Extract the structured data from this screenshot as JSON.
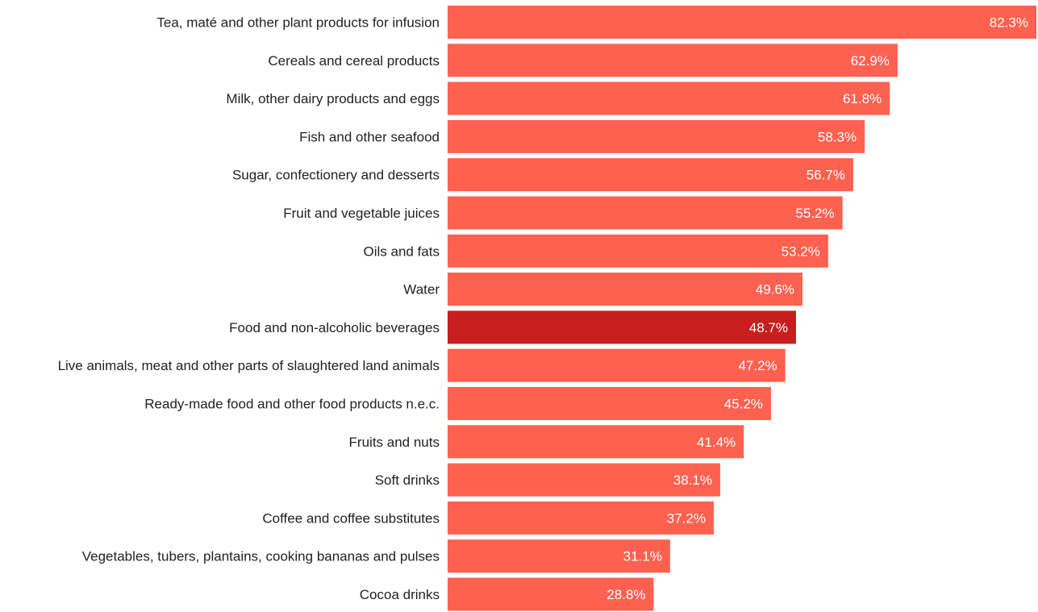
{
  "chart_data": {
    "type": "bar",
    "orientation": "horizontal",
    "categories": [
      "Tea, maté and other plant products for infusion",
      "Cereals and cereal products",
      "Milk, other dairy products and eggs",
      "Fish and other seafood",
      "Sugar, confectionery and desserts",
      "Fruit and vegetable juices",
      "Oils and fats",
      "Water",
      "Food and non-alcoholic beverages",
      "Live animals, meat and other parts of slaughtered land animals",
      "Ready-made food and other food products n.e.c.",
      "Fruits and nuts",
      "Soft drinks",
      "Coffee and coffee substitutes",
      "Vegetables, tubers, plantains, cooking bananas and pulses",
      "Cocoa drinks"
    ],
    "values": [
      82.3,
      62.9,
      61.8,
      58.3,
      56.7,
      55.2,
      53.2,
      49.6,
      48.7,
      47.2,
      45.2,
      41.4,
      38.1,
      37.2,
      31.1,
      28.8
    ],
    "value_labels": [
      "82.3%",
      "62.9%",
      "61.8%",
      "58.3%",
      "56.7%",
      "55.2%",
      "53.2%",
      "49.6%",
      "48.7%",
      "47.2%",
      "45.2%",
      "41.4%",
      "38.1%",
      "37.2%",
      "31.1%",
      "28.8%"
    ],
    "highlight": "Food and non-alcoholic beverages",
    "xlim": [
      0,
      82.3
    ],
    "grid": false,
    "legend": "none",
    "colors": {
      "bar": "#ff6150",
      "highlight": "#c81e1e",
      "label_text": "#222222",
      "value_text": "#ffffff"
    }
  }
}
